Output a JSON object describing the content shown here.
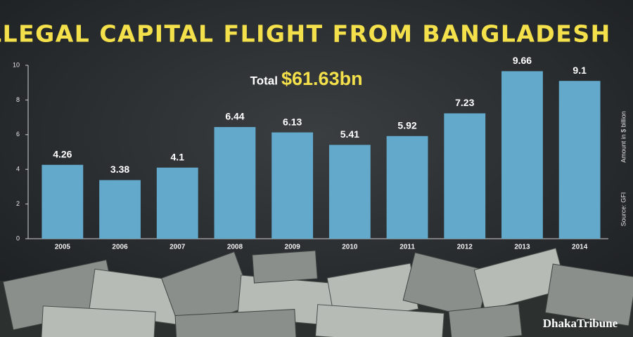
{
  "chart_data": {
    "type": "bar",
    "title": "ILLEGAL CAPITAL FLIGHT FROM BANGLADESH",
    "total_label": "Total",
    "total_value": "$61.63bn",
    "y_axis_label": "Amount in $ billion",
    "source": "Source: GFI",
    "credit": "DhakaTribune",
    "categories": [
      "2005",
      "2006",
      "2007",
      "2008",
      "2009",
      "2010",
      "2011",
      "2012",
      "2013",
      "2014"
    ],
    "values": [
      4.26,
      3.38,
      4.1,
      6.44,
      6.13,
      5.41,
      5.92,
      7.23,
      9.66,
      9.1
    ],
    "color": "#62a9cb",
    "ylim": [
      0,
      10
    ],
    "yticks": [
      0,
      2,
      4,
      6,
      8,
      10
    ],
    "grid": false
  }
}
